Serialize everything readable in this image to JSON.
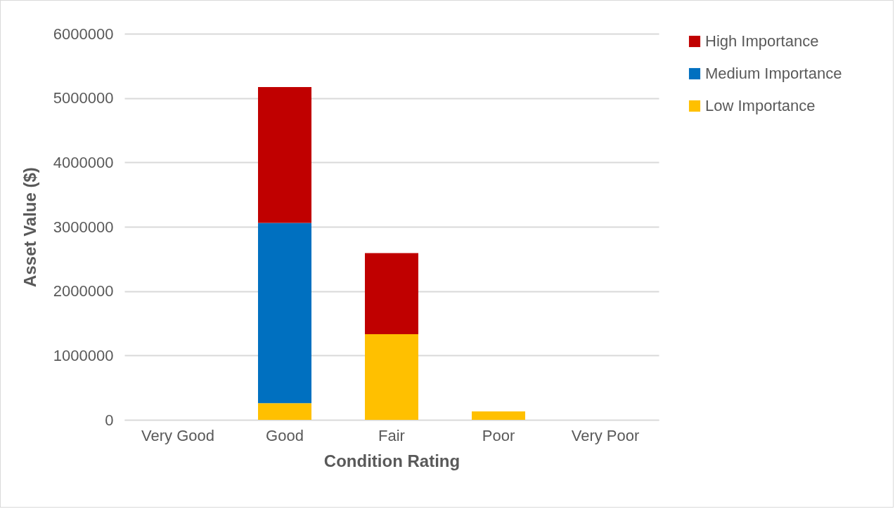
{
  "chart_data": {
    "type": "bar",
    "stacked": true,
    "xlabel": "Condition Rating",
    "ylabel": "Asset Value ($)",
    "categories": [
      "Very Good",
      "Good",
      "Fair",
      "Poor",
      "Very Poor"
    ],
    "series": [
      {
        "name": "Low Importance",
        "color": "#ffc000",
        "values": [
          0,
          260000,
          1330000,
          130000,
          0
        ]
      },
      {
        "name": "Medium Importance",
        "color": "#0070c0",
        "values": [
          0,
          2800000,
          0,
          0,
          0
        ]
      },
      {
        "name": "High Importance",
        "color": "#c00000",
        "values": [
          0,
          2110000,
          1260000,
          0,
          0
        ]
      }
    ],
    "ylim": [
      0,
      6000000
    ],
    "yticks": [
      0,
      1000000,
      2000000,
      3000000,
      4000000,
      5000000,
      6000000
    ],
    "grid": "y",
    "legend": "right"
  }
}
